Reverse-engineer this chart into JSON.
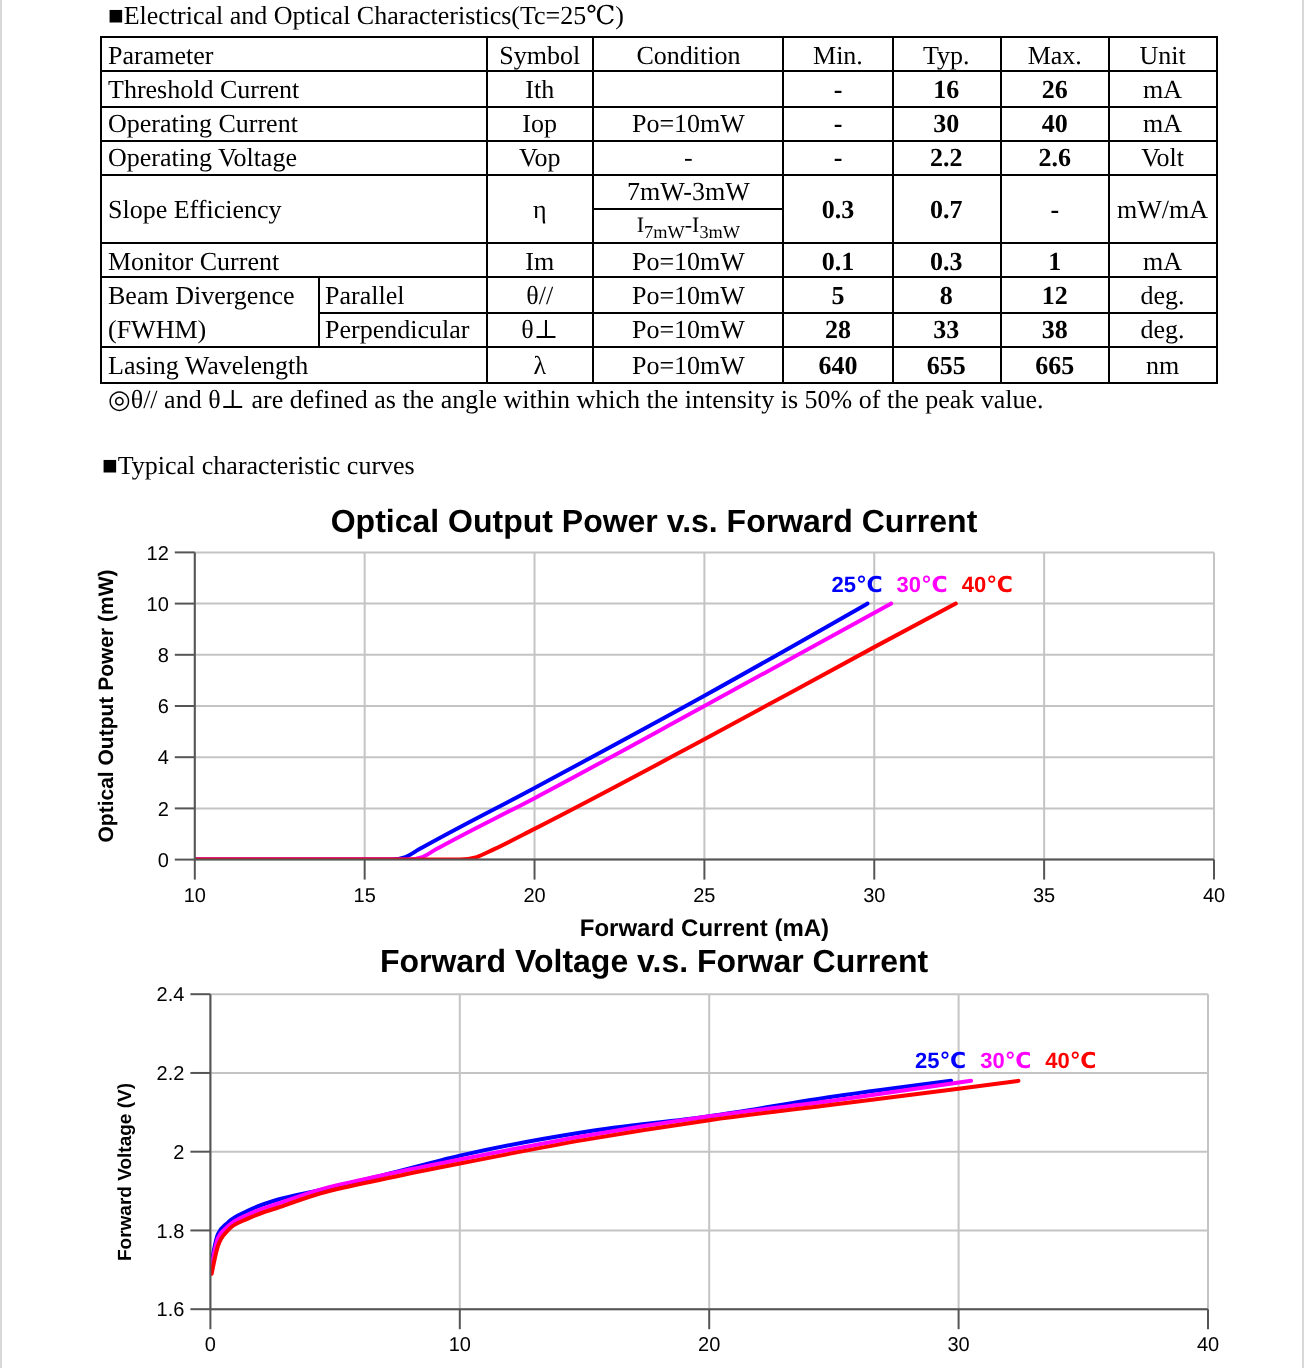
{
  "chart_data": [
    {
      "type": "other",
      "title": "■Electrical and Optical Characteristics(Tc=25℃)",
      "categories": [
        "Parameter",
        "Symbol",
        "Condition",
        "Min.",
        "Typ.",
        "Max.",
        "Unit"
      ],
      "cell_labels": [
        [
          "Threshold Current",
          null,
          "Ith",
          null,
          "-",
          "16",
          "26",
          "mA"
        ],
        [
          "Operating Current",
          null,
          "Iop",
          "Po=10mW",
          "-",
          "30",
          "40",
          "mA"
        ],
        [
          "Operating Voltage",
          null,
          "Vop",
          "-",
          "-",
          "2.2",
          "2.6",
          "Volt"
        ],
        [
          "Slope Efficiency",
          null,
          "η",
          "7mW-3mW\nI$_{7mW}$-I$_{3mW}$",
          "0.3",
          "0.7",
          "-",
          "mW/mA"
        ],
        [
          "Monitor Current",
          null,
          "Im",
          "Po=10mW",
          "0.1",
          "0.3",
          "1",
          "mA"
        ],
        [
          "Beam Divergence",
          "Parallel",
          "θ//",
          "Po=10mW",
          "5",
          "8",
          "12",
          "deg."
        ],
        [
          "(FWHM)",
          "Perpendicular",
          "θ⊥",
          "Po=10mW",
          "28",
          "33",
          "38",
          "deg."
        ],
        [
          "Lasing Wavelength",
          null,
          "λ",
          "Po=10mW",
          "640",
          "655",
          "665",
          "nm"
        ]
      ],
      "annotations": [
        "◎θ// and θ⊥ are defined as the angle within which the intensity is 50% of the peak value.",
        "■Typical characteristic curves"
      ]
    },
    {
      "type": "line",
      "title": "Optical Output Power v.s. Forward Current",
      "xlabel": "Forward Current (mA)",
      "ylabel": "Optical Output Power (mW)",
      "xlim": [
        10,
        40
      ],
      "xticks": [
        10,
        15,
        20,
        25,
        30,
        35,
        40
      ],
      "ylim": [
        0,
        12
      ],
      "yticks": [
        0,
        2,
        4,
        6,
        8,
        10,
        12
      ],
      "grid": true,
      "series": [
        {
          "name": "25℃",
          "color": "#0000ff",
          "x": [
            10,
            15.8,
            16.2,
            16.6,
            20,
            25,
            29.8
          ],
          "values": [
            0,
            0,
            0.1,
            0.4,
            2.8,
            6.4,
            10
          ]
        },
        {
          "name": "30℃",
          "color": "#ff00ff",
          "x": [
            10,
            16.3,
            16.7,
            17.1,
            20,
            25,
            30.5
          ],
          "values": [
            0,
            0,
            0.1,
            0.4,
            2.4,
            6,
            10
          ]
        },
        {
          "name": "40℃",
          "color": "#ff0000",
          "x": [
            10,
            17.8,
            18.3,
            18.8,
            20,
            25,
            30,
            32.4
          ],
          "values": [
            0,
            0,
            0.1,
            0.4,
            1.2,
            4.7,
            8.3,
            10
          ]
        }
      ]
    },
    {
      "type": "line",
      "title": "Forward Voltage v.s. Forwar Current",
      "ylabel": "Forward Voltage (V)",
      "xlim": [
        0,
        40
      ],
      "xticks": [
        0,
        10,
        20,
        30,
        40
      ],
      "ylim": [
        1.6,
        2.4
      ],
      "yticks": [
        1.6,
        1.8,
        2,
        2.2,
        2.4
      ],
      "grid": true,
      "series": [
        {
          "name": "25℃",
          "color": "#0000ff",
          "x": [
            0.05,
            0.3,
            0.7,
            1.5,
            2.8,
            4.2,
            6.9,
            10,
            15,
            20,
            25,
            29.7
          ],
          "values": [
            1.72,
            1.79,
            1.82,
            1.85,
            1.88,
            1.9,
            1.94,
            1.99,
            2.05,
            2.09,
            2.14,
            2.18
          ]
        },
        {
          "name": "30℃",
          "color": "#ff00ff",
          "x": [
            0.05,
            0.3,
            0.7,
            1.5,
            2.8,
            4.2,
            6.9,
            10,
            15,
            20,
            25,
            30.5
          ],
          "values": [
            1.71,
            1.78,
            1.81,
            1.84,
            1.87,
            1.9,
            1.94,
            1.98,
            2.04,
            2.09,
            2.13,
            2.18
          ]
        },
        {
          "name": "40℃",
          "color": "#ff0000",
          "x": [
            0.05,
            0.3,
            0.7,
            1.5,
            2.8,
            4.2,
            6.9,
            10,
            15,
            20,
            25,
            30,
            32.4
          ],
          "values": [
            1.69,
            1.76,
            1.8,
            1.83,
            1.86,
            1.89,
            1.93,
            1.97,
            2.03,
            2.08,
            2.12,
            2.16,
            2.18
          ]
        }
      ]
    }
  ]
}
